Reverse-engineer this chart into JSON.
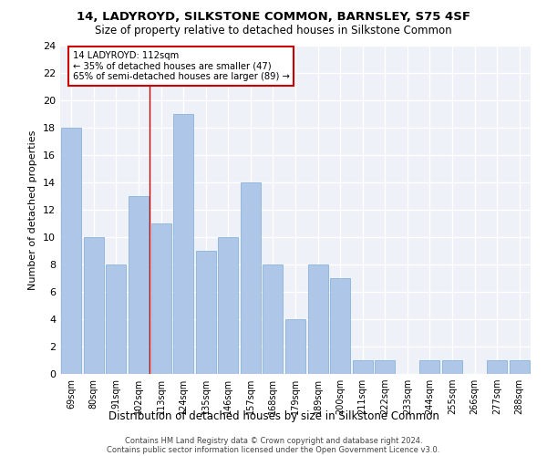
{
  "title": "14, LADYROYD, SILKSTONE COMMON, BARNSLEY, S75 4SF",
  "subtitle": "Size of property relative to detached houses in Silkstone Common",
  "xlabel": "Distribution of detached houses by size in Silkstone Common",
  "ylabel": "Number of detached properties",
  "categories": [
    "69sqm",
    "80sqm",
    "91sqm",
    "102sqm",
    "113sqm",
    "124sqm",
    "135sqm",
    "146sqm",
    "157sqm",
    "168sqm",
    "179sqm",
    "189sqm",
    "200sqm",
    "211sqm",
    "222sqm",
    "233sqm",
    "244sqm",
    "255sqm",
    "266sqm",
    "277sqm",
    "288sqm"
  ],
  "values": [
    18,
    10,
    8,
    13,
    11,
    19,
    9,
    10,
    14,
    8,
    4,
    8,
    7,
    1,
    1,
    0,
    1,
    1,
    0,
    1,
    1
  ],
  "bar_color": "#aec6e8",
  "bar_edgecolor": "#8ab4d8",
  "vline_color": "#cc0000",
  "annotation_box_edgecolor": "#cc0000",
  "annotation_line1": "14 LADYROYD: 112sqm",
  "annotation_line2": "← 35% of detached houses are smaller (47)",
  "annotation_line3": "65% of semi-detached houses are larger (89) →",
  "ylim": [
    0,
    24
  ],
  "yticks": [
    0,
    2,
    4,
    6,
    8,
    10,
    12,
    14,
    16,
    18,
    20,
    22,
    24
  ],
  "background_color": "#eef2f8",
  "footer1": "Contains HM Land Registry data © Crown copyright and database right 2024.",
  "footer2": "Contains public sector information licensed under the Open Government Licence v3.0."
}
